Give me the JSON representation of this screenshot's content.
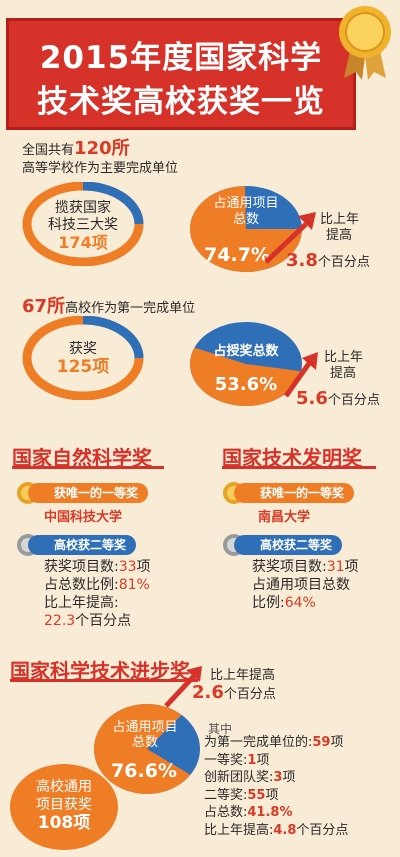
{
  "header": {
    "title_line1": "2015年度国家科学",
    "title_line2": "技术奖高校获奖一览"
  },
  "intro": {
    "prefix": "全国共有",
    "count": "120所",
    "line2": "高等学校作为主要完成单位"
  },
  "donut1": {
    "line1": "揽获国家",
    "line2": "科技三大奖",
    "value": "174项"
  },
  "pie1": {
    "label_line1": "占通用项目",
    "label_line2": "总数",
    "percent": "74.7%",
    "fraction": 0.747
  },
  "delta1": {
    "line1": "比上年",
    "line2": "提高",
    "num": "3.8",
    "unit": "个百分点"
  },
  "first_unit": {
    "count": "67所",
    "text": "高校作为第一完成单位"
  },
  "donut2": {
    "line1": "获奖",
    "value": "125项"
  },
  "pie2": {
    "label": "占授奖总数",
    "percent": "53.6%",
    "fraction": 0.536
  },
  "delta2": {
    "line1": "比上年",
    "line2": "提高",
    "num": "5.6",
    "unit": "个百分点"
  },
  "natural": {
    "title": "国家自然科学奖",
    "gold_label": "获唯一的一等奖",
    "gold_winner": "中国科技大学",
    "silver_label": "高校获二等奖",
    "l1_prefix": "获奖项目数:",
    "l1_val": "33",
    "l1_unit": "项",
    "l2_prefix": "占总数比例:",
    "l2_val": "81%",
    "l3": "比上年提高:",
    "l4_val": "22.3",
    "l4_unit": "个百分点"
  },
  "invention": {
    "title": "国家技术发明奖",
    "gold_label": "获唯一的一等奖",
    "gold_winner": "南昌大学",
    "silver_label": "高校获二等奖",
    "l1_prefix": "获奖项目数:",
    "l1_val": "31",
    "l1_unit": "项",
    "l2": "占通用项目总数",
    "l3_prefix": "比例:",
    "l3_val": "64%"
  },
  "progress": {
    "title": "国家科学技术进步奖",
    "delta_text": "比上年提高",
    "delta_num": "2.6",
    "delta_unit": "个百分点",
    "pie_line1": "占通用项目",
    "pie_line2": "总数",
    "pie_percent": "76.6%",
    "pie_fraction": 0.766,
    "box_line1": "高校通用",
    "box_line2": "项目获奖",
    "box_value": "108项",
    "list_header": "其中",
    "items": [
      {
        "label": "为第一完成单位的:",
        "val": "59",
        "unit": "项"
      },
      {
        "label": "一等奖:",
        "val": "1",
        "unit": "项"
      },
      {
        "label": "创新团队奖:",
        "val": "3",
        "unit": "项"
      },
      {
        "label": "二等奖:",
        "val": "55",
        "unit": "项"
      },
      {
        "label": "占总数:",
        "val": "41.8%",
        "unit": ""
      },
      {
        "label": "比上年提高:",
        "val": "4.8",
        "unit": "个百分点"
      }
    ]
  },
  "colors": {
    "red": "#d6322a",
    "blue": "#2f6fb8",
    "orange": "#ef7d26",
    "gold": "#e6a328",
    "silver": "#9a9a9a"
  }
}
